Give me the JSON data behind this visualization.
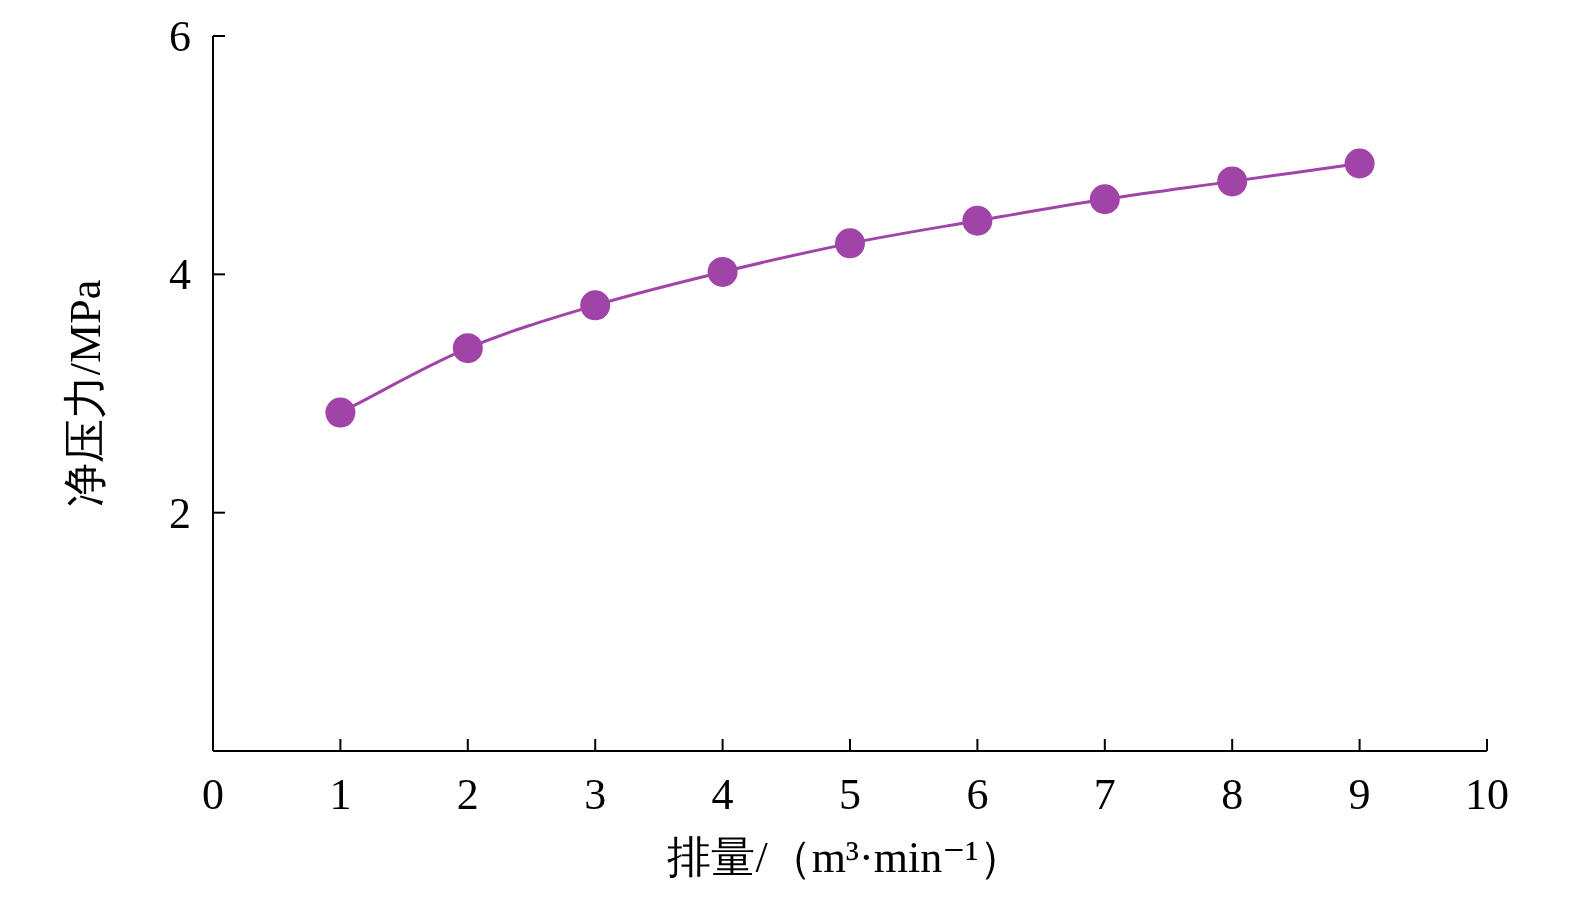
{
  "chart_data": {
    "type": "line",
    "xlabel": "排量/（m³·min⁻¹）",
    "ylabel": "净压力/MPa",
    "x": [
      1,
      2,
      3,
      4,
      5,
      6,
      7,
      8,
      9
    ],
    "series": [
      {
        "color": "#a044a8",
        "values": [
          2.84,
          3.38,
          3.74,
          4.02,
          4.26,
          4.45,
          4.63,
          4.78,
          4.93
        ]
      }
    ],
    "xlim": [
      0,
      10
    ],
    "ylim": [
      0,
      6
    ],
    "xticks": [
      0,
      1,
      2,
      3,
      4,
      5,
      6,
      7,
      8,
      9,
      10
    ],
    "yticks": [
      2,
      4,
      6
    ],
    "marker": "circle",
    "line_style": "solid"
  }
}
